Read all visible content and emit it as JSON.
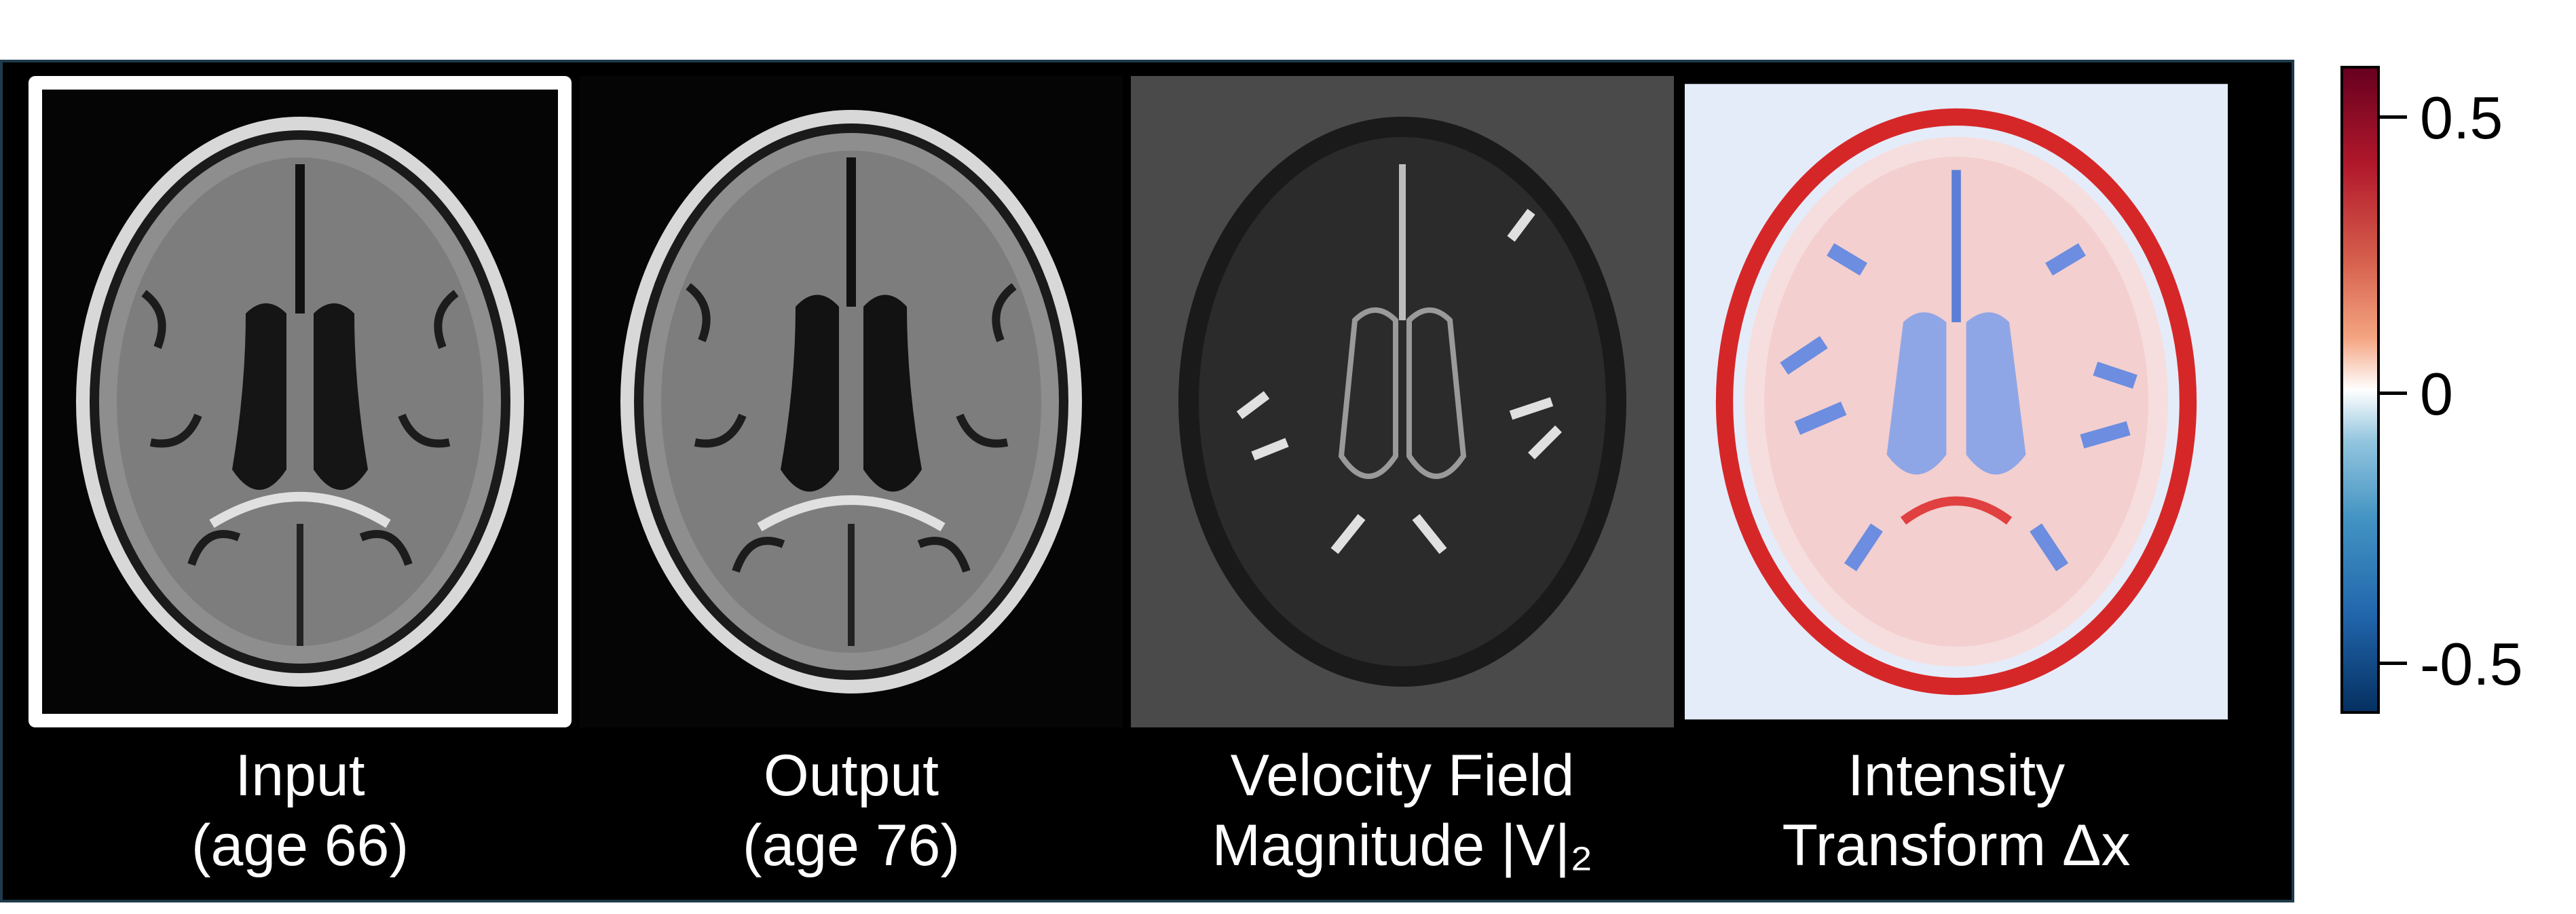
{
  "panels": [
    {
      "id": "input",
      "caption_line1": "Input",
      "caption_line2": "(age 66)"
    },
    {
      "id": "output",
      "caption_line1": "Output",
      "caption_line2": "(age 76)"
    },
    {
      "id": "velocity",
      "caption_line1": "Velocity Field",
      "caption_line2": "Magnitude |V|₂"
    },
    {
      "id": "intensity",
      "caption_line1": "Intensity",
      "caption_line2": "Transform Δx"
    }
  ],
  "colorbar": {
    "ticks": [
      "0.5",
      "0",
      "-0.5"
    ],
    "colormap": [
      "#67001f",
      "#b2182b",
      "#f4a582",
      "#ffffff",
      "#92c5de",
      "#2166ac",
      "#053061"
    ]
  },
  "colors": {
    "frame_border": "#1f3b4d",
    "highlight": "#ffffff",
    "background": "#000000"
  }
}
